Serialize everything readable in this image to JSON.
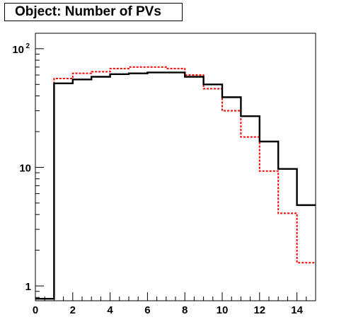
{
  "chart_data": {
    "type": "step-histogram",
    "title": "Object: Number of PVs",
    "xlim": [
      0,
      15
    ],
    "ylim": [
      0.75,
      135
    ],
    "yscale": "log",
    "x_ticks": [
      0,
      2,
      4,
      6,
      8,
      10,
      12,
      14
    ],
    "y_ticks": [
      {
        "value": 1,
        "label": "1"
      },
      {
        "value": 10,
        "label": "10"
      },
      {
        "value": 100,
        "label": "10",
        "exp": "2"
      }
    ],
    "bin_edges": [
      0,
      1,
      2,
      3,
      4,
      5,
      6,
      7,
      8,
      9,
      10,
      11,
      12,
      13,
      14,
      15
    ],
    "series": [
      {
        "style": "solid",
        "color": "#000000",
        "values": [
          0.78,
          51,
          55,
          58,
          61,
          62,
          63,
          63,
          58,
          50,
          39,
          27,
          16.5,
          9.7,
          4.8
        ]
      },
      {
        "style": "dashed",
        "color": "#ff0000",
        "values": [
          0.78,
          56,
          62,
          64,
          68,
          70,
          70,
          68,
          60,
          46,
          30,
          18,
          9.3,
          4.1,
          1.57
        ]
      }
    ],
    "grid": false,
    "legend": "none"
  }
}
